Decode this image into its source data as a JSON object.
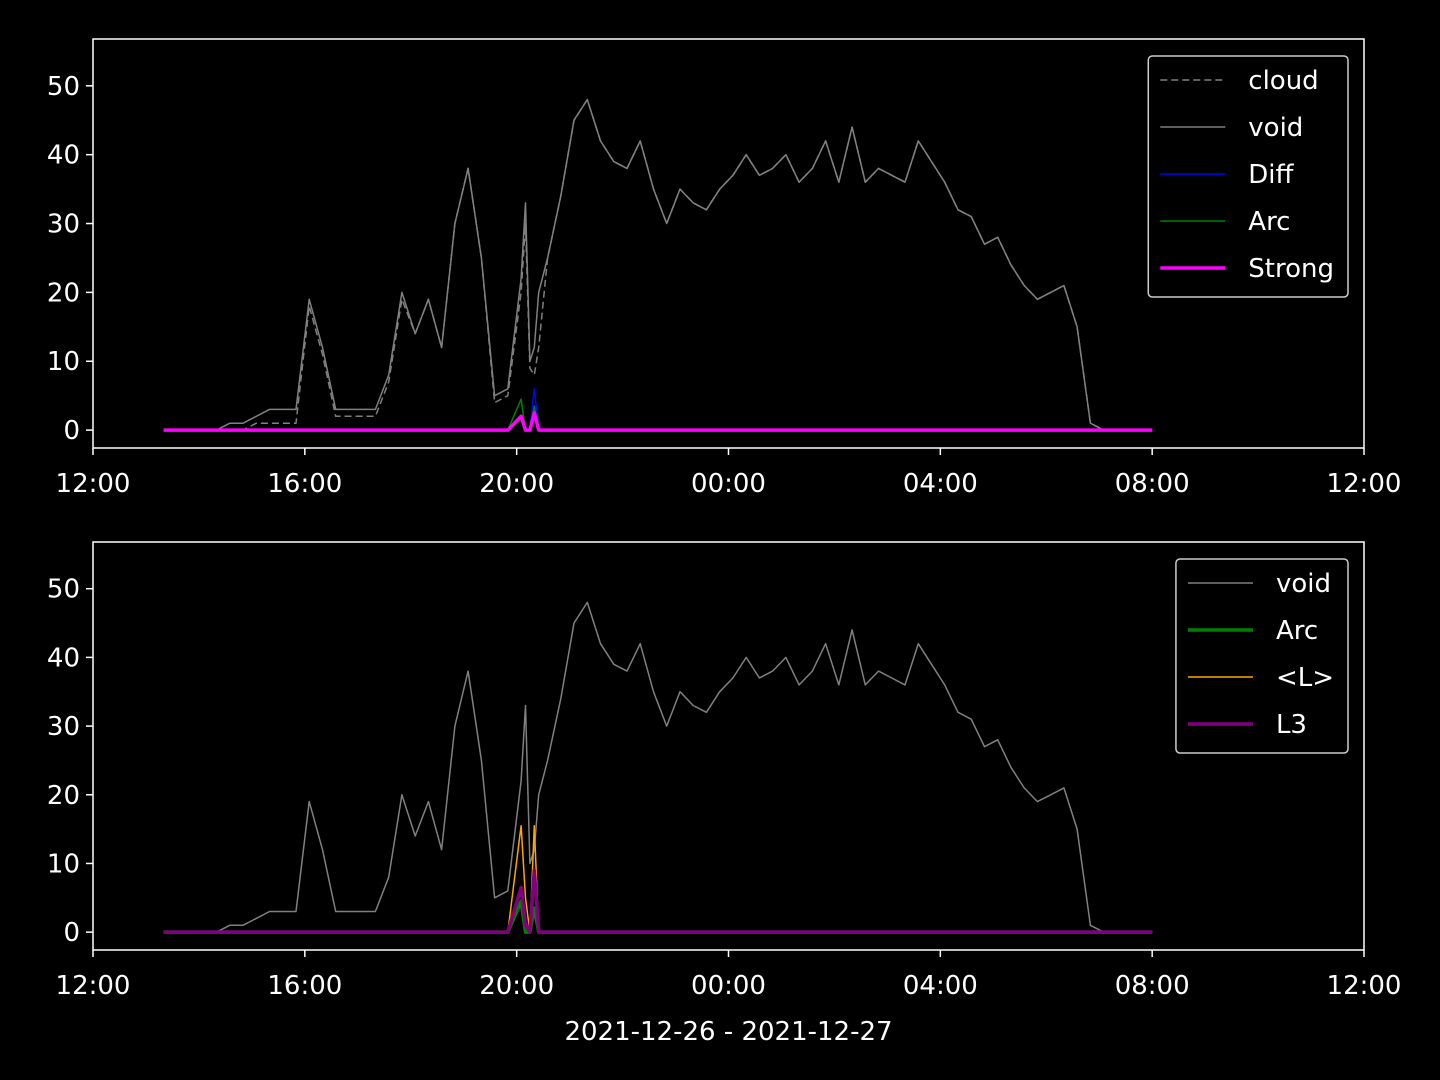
{
  "chart_data": [
    {
      "type": "line",
      "x": [
        "13:20",
        "13:35",
        "13:50",
        "14:05",
        "14:20",
        "14:35",
        "14:50",
        "15:05",
        "15:20",
        "15:35",
        "15:50",
        "16:05",
        "16:20",
        "16:35",
        "16:50",
        "17:05",
        "17:20",
        "17:35",
        "17:50",
        "18:05",
        "18:20",
        "18:35",
        "18:50",
        "19:05",
        "19:20",
        "19:35",
        "19:50",
        "20:05",
        "20:10",
        "20:15",
        "20:20",
        "20:25",
        "20:35",
        "20:50",
        "21:05",
        "21:20",
        "21:35",
        "21:50",
        "22:05",
        "22:20",
        "22:35",
        "22:50",
        "23:05",
        "23:20",
        "23:35",
        "23:50",
        "00:05",
        "00:20",
        "00:35",
        "00:50",
        "01:05",
        "01:20",
        "01:35",
        "01:50",
        "02:05",
        "02:20",
        "02:35",
        "02:50",
        "03:05",
        "03:20",
        "03:35",
        "03:50",
        "04:05",
        "04:20",
        "04:35",
        "04:50",
        "05:05",
        "05:20",
        "05:35",
        "05:50",
        "06:05",
        "06:20",
        "06:35",
        "06:50",
        "07:05",
        "07:20",
        "07:35",
        "07:50",
        "08:00"
      ],
      "xlim": [
        "12:00",
        "12:00"
      ],
      "xticks": [
        "12:00",
        "16:00",
        "20:00",
        "00:00",
        "04:00",
        "08:00",
        "12:00"
      ],
      "ylim": [
        -2.6,
        56.8
      ],
      "yticks": [
        0,
        10,
        20,
        30,
        40,
        50
      ],
      "legend": "upper right",
      "series": [
        {
          "name": "cloud",
          "color": "#808080",
          "linestyle": "dashed",
          "linewidth": 1.5,
          "values": [
            0,
            0,
            0,
            0,
            0,
            0,
            0,
            1,
            1,
            1,
            1,
            18,
            11,
            2,
            2,
            2,
            2,
            7,
            19,
            14,
            19,
            12,
            30,
            38,
            25,
            4,
            5,
            20,
            30,
            9,
            8,
            12,
            25,
            34,
            45,
            48,
            42,
            39,
            38,
            42,
            35,
            30,
            35,
            33,
            32,
            35,
            37,
            40,
            37,
            38,
            40,
            36,
            38,
            42,
            36,
            44,
            36,
            38,
            37,
            36,
            42,
            39,
            36,
            32,
            31,
            27,
            28,
            24,
            21,
            19,
            20,
            21,
            15,
            1,
            0,
            0,
            0,
            0,
            0
          ]
        },
        {
          "name": "void",
          "color": "#808080",
          "linestyle": "solid",
          "linewidth": 1.5,
          "values": [
            0,
            0,
            0,
            0,
            0,
            1,
            1,
            2,
            3,
            3,
            3,
            19,
            12,
            3,
            3,
            3,
            3,
            8,
            20,
            14,
            19,
            12,
            30,
            38,
            25,
            5,
            6,
            22,
            33,
            10,
            12,
            20,
            25,
            34,
            45,
            48,
            42,
            39,
            38,
            42,
            35,
            30,
            35,
            33,
            32,
            35,
            37,
            40,
            37,
            38,
            40,
            36,
            38,
            42,
            36,
            44,
            36,
            38,
            37,
            36,
            42,
            39,
            36,
            32,
            31,
            27,
            28,
            24,
            21,
            19,
            20,
            21,
            15,
            1,
            0,
            0,
            0,
            0,
            0
          ]
        },
        {
          "name": "Diff",
          "color": "#0000ff",
          "linestyle": "solid",
          "linewidth": 1.5,
          "values": [
            0,
            0,
            0,
            0,
            0,
            0,
            0,
            0,
            0,
            0,
            0,
            0,
            0,
            0,
            0,
            0,
            0,
            0,
            0,
            0,
            0,
            0,
            0,
            0,
            0,
            0,
            0,
            2,
            0,
            0,
            6,
            0,
            0,
            0,
            0,
            0,
            0,
            0,
            0,
            0,
            0,
            0,
            0,
            0,
            0,
            0,
            0,
            0,
            0,
            0,
            0,
            0,
            0,
            0,
            0,
            0,
            0,
            0,
            0,
            0,
            0,
            0,
            0,
            0,
            0,
            0,
            0,
            0,
            0,
            0,
            0,
            0,
            0,
            0,
            0,
            0,
            0,
            0,
            0
          ]
        },
        {
          "name": "Arc",
          "color": "#008000",
          "linestyle": "solid",
          "linewidth": 1.5,
          "values": [
            0,
            0,
            0,
            0,
            0,
            0,
            0,
            0,
            0,
            0,
            0,
            0,
            0,
            0,
            0,
            0,
            0,
            0,
            0,
            0,
            0,
            0,
            0,
            0,
            0,
            0,
            0,
            4.5,
            0,
            0,
            3.5,
            0,
            0,
            0,
            0,
            0,
            0,
            0,
            0,
            0,
            0,
            0,
            0,
            0,
            0,
            0,
            0,
            0,
            0,
            0,
            0,
            0,
            0,
            0,
            0,
            0,
            0,
            0,
            0,
            0,
            0,
            0,
            0,
            0,
            0,
            0,
            0,
            0,
            0,
            0,
            0,
            0,
            0,
            0,
            0,
            0,
            0,
            0,
            0
          ]
        },
        {
          "name": "Strong",
          "color": "#ff00ff",
          "linestyle": "solid",
          "linewidth": 3.5,
          "values": [
            0,
            0,
            0,
            0,
            0,
            0,
            0,
            0,
            0,
            0,
            0,
            0,
            0,
            0,
            0,
            0,
            0,
            0,
            0,
            0,
            0,
            0,
            0,
            0,
            0,
            0,
            0,
            2,
            0,
            0,
            2.5,
            0,
            0,
            0,
            0,
            0,
            0,
            0,
            0,
            0,
            0,
            0,
            0,
            0,
            0,
            0,
            0,
            0,
            0,
            0,
            0,
            0,
            0,
            0,
            0,
            0,
            0,
            0,
            0,
            0,
            0,
            0,
            0,
            0,
            0,
            0,
            0,
            0,
            0,
            0,
            0,
            0,
            0,
            0,
            0,
            0,
            0,
            0,
            0
          ]
        }
      ]
    },
    {
      "type": "line",
      "x": [
        "13:20",
        "13:35",
        "13:50",
        "14:05",
        "14:20",
        "14:35",
        "14:50",
        "15:05",
        "15:20",
        "15:35",
        "15:50",
        "16:05",
        "16:20",
        "16:35",
        "16:50",
        "17:05",
        "17:20",
        "17:35",
        "17:50",
        "18:05",
        "18:20",
        "18:35",
        "18:50",
        "19:05",
        "19:20",
        "19:35",
        "19:50",
        "20:05",
        "20:10",
        "20:15",
        "20:20",
        "20:25",
        "20:35",
        "20:50",
        "21:05",
        "21:20",
        "21:35",
        "21:50",
        "22:05",
        "22:20",
        "22:35",
        "22:50",
        "23:05",
        "23:20",
        "23:35",
        "23:50",
        "00:05",
        "00:20",
        "00:35",
        "00:50",
        "01:05",
        "01:20",
        "01:35",
        "01:50",
        "02:05",
        "02:20",
        "02:35",
        "02:50",
        "03:05",
        "03:20",
        "03:35",
        "03:50",
        "04:05",
        "04:20",
        "04:35",
        "04:50",
        "05:05",
        "05:20",
        "05:35",
        "05:50",
        "06:05",
        "06:20",
        "06:35",
        "06:50",
        "07:05",
        "07:20",
        "07:35",
        "07:50",
        "08:00"
      ],
      "xlim": [
        "12:00",
        "12:00"
      ],
      "xticks": [
        "12:00",
        "16:00",
        "20:00",
        "00:00",
        "04:00",
        "08:00",
        "12:00"
      ],
      "xlabel": "2021-12-26 - 2021-12-27",
      "ylim": [
        -2.6,
        56.8
      ],
      "yticks": [
        0,
        10,
        20,
        30,
        40,
        50
      ],
      "legend": "upper right",
      "series": [
        {
          "name": "void",
          "color": "#808080",
          "linestyle": "solid",
          "linewidth": 1.5,
          "values": [
            0,
            0,
            0,
            0,
            0,
            1,
            1,
            2,
            3,
            3,
            3,
            19,
            12,
            3,
            3,
            3,
            3,
            8,
            20,
            14,
            19,
            12,
            30,
            38,
            25,
            5,
            6,
            22,
            33,
            10,
            12,
            20,
            25,
            34,
            45,
            48,
            42,
            39,
            38,
            42,
            35,
            30,
            35,
            33,
            32,
            35,
            37,
            40,
            37,
            38,
            40,
            36,
            38,
            42,
            36,
            44,
            36,
            38,
            37,
            36,
            42,
            39,
            36,
            32,
            31,
            27,
            28,
            24,
            21,
            19,
            20,
            21,
            15,
            1,
            0,
            0,
            0,
            0,
            0
          ]
        },
        {
          "name": "Arc",
          "color": "#008000",
          "linestyle": "solid",
          "linewidth": 3.5,
          "values": [
            0,
            0,
            0,
            0,
            0,
            0,
            0,
            0,
            0,
            0,
            0,
            0,
            0,
            0,
            0,
            0,
            0,
            0,
            0,
            0,
            0,
            0,
            0,
            0,
            0,
            0,
            0,
            4.5,
            0,
            0,
            3.5,
            0,
            0,
            0,
            0,
            0,
            0,
            0,
            0,
            0,
            0,
            0,
            0,
            0,
            0,
            0,
            0,
            0,
            0,
            0,
            0,
            0,
            0,
            0,
            0,
            0,
            0,
            0,
            0,
            0,
            0,
            0,
            0,
            0,
            0,
            0,
            0,
            0,
            0,
            0,
            0,
            0,
            0,
            0,
            0,
            0,
            0,
            0,
            0
          ]
        },
        {
          "name": "<L>",
          "color": "#ffa500",
          "linestyle": "solid",
          "linewidth": 1.5,
          "values": [
            0,
            0,
            0,
            0,
            0,
            0,
            0,
            0,
            0,
            0,
            0,
            0,
            0,
            0,
            0,
            0,
            0,
            0,
            0,
            0,
            0,
            0,
            0,
            0,
            0,
            0,
            0,
            15.5,
            5,
            0,
            15.5,
            0,
            0,
            0,
            0,
            0,
            0,
            0,
            0,
            0,
            0,
            0,
            0,
            0,
            0,
            0,
            0,
            0,
            0,
            0,
            0,
            0,
            0,
            0,
            0,
            0,
            0,
            0,
            0,
            0,
            0,
            0,
            0,
            0,
            0,
            0,
            0,
            0,
            0,
            0,
            0,
            0,
            0,
            0,
            0,
            0,
            0,
            0,
            0
          ]
        },
        {
          "name": "L3",
          "color": "#800080",
          "linestyle": "solid",
          "linewidth": 3.5,
          "values": [
            0,
            0,
            0,
            0,
            0,
            0,
            0,
            0,
            0,
            0,
            0,
            0,
            0,
            0,
            0,
            0,
            0,
            0,
            0,
            0,
            0,
            0,
            0,
            0,
            0,
            0,
            0,
            6.5,
            1,
            0,
            9,
            0,
            0,
            0,
            0,
            0,
            0,
            0,
            0,
            0,
            0,
            0,
            0,
            0,
            0,
            0,
            0,
            0,
            0,
            0,
            0,
            0,
            0,
            0,
            0,
            0,
            0,
            0,
            0,
            0,
            0,
            0,
            0,
            0,
            0,
            0,
            0,
            0,
            0,
            0,
            0,
            0,
            0,
            0,
            0,
            0,
            0,
            0,
            0
          ]
        }
      ]
    }
  ]
}
